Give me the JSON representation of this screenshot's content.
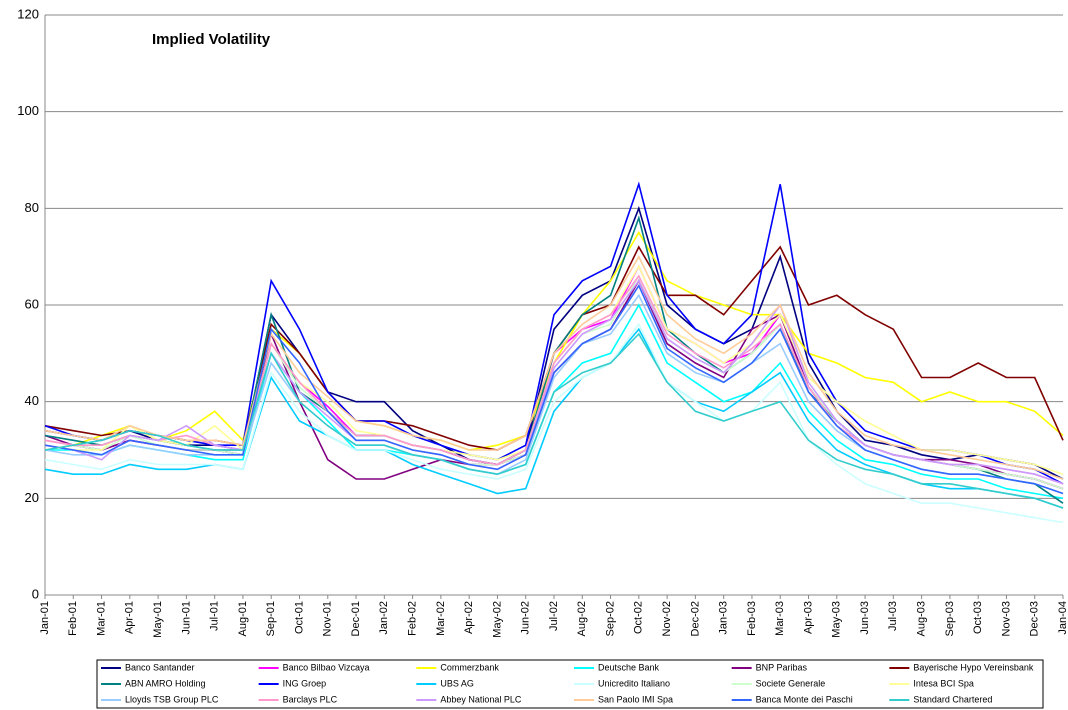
{
  "chart_data": {
    "type": "line",
    "title": "Implied Volatility",
    "categories": [
      "Jan-01",
      "Feb-01",
      "Mar-01",
      "Apr-01",
      "May-01",
      "Jun-01",
      "Jul-01",
      "Aug-01",
      "Sep-01",
      "Oct-01",
      "Nov-01",
      "Dec-01",
      "Jan-02",
      "Feb-02",
      "Mar-02",
      "Apr-02",
      "May-02",
      "Jun-02",
      "Jul-02",
      "Aug-02",
      "Sep-02",
      "Oct-02",
      "Nov-02",
      "Dec-02",
      "Jan-03",
      "Feb-03",
      "Mar-03",
      "Apr-03",
      "May-03",
      "Jun-03",
      "Jul-03",
      "Aug-03",
      "Sep-03",
      "Oct-03",
      "Nov-03",
      "Dec-03",
      "Jan-04"
    ],
    "ylim": [
      0,
      120
    ],
    "yticks": [
      0,
      20,
      40,
      60,
      80,
      100,
      120
    ],
    "grid": true,
    "series": [
      {
        "name": "Banco Santander",
        "color": "#000080",
        "values": [
          34,
          33,
          32,
          34,
          32,
          31,
          31,
          30,
          58,
          50,
          42,
          40,
          40,
          34,
          31,
          28,
          27,
          30,
          55,
          62,
          65,
          80,
          60,
          55,
          52,
          55,
          70,
          48,
          38,
          32,
          31,
          29,
          28,
          29,
          28,
          27,
          24
        ]
      },
      {
        "name": "Banco Bilbao Vizcaya",
        "color": "#ff00ff",
        "values": [
          32,
          31,
          30,
          32,
          31,
          30,
          30,
          29,
          52,
          44,
          39,
          33,
          33,
          31,
          30,
          28,
          27,
          29,
          50,
          55,
          57,
          68,
          55,
          52,
          48,
          50,
          58,
          43,
          36,
          31,
          29,
          28,
          27,
          26,
          25,
          24,
          22
        ]
      },
      {
        "name": "Commerzbank",
        "color": "#ffff00",
        "values": [
          30,
          31,
          33,
          35,
          32,
          34,
          38,
          32,
          55,
          50,
          42,
          36,
          35,
          33,
          32,
          30,
          31,
          33,
          48,
          58,
          65,
          75,
          65,
          62,
          60,
          58,
          58,
          50,
          48,
          45,
          44,
          40,
          42,
          40,
          40,
          38,
          33
        ]
      },
      {
        "name": "Deutsche Bank",
        "color": "#00ffff",
        "values": [
          30,
          30,
          29,
          31,
          30,
          29,
          28,
          28,
          50,
          42,
          36,
          30,
          30,
          29,
          28,
          26,
          25,
          27,
          42,
          48,
          50,
          60,
          48,
          44,
          40,
          42,
          48,
          38,
          32,
          28,
          27,
          25,
          24,
          24,
          22,
          21,
          20
        ]
      },
      {
        "name": "BNP Paribas",
        "color": "#800080",
        "values": [
          33,
          31,
          30,
          32,
          31,
          30,
          30,
          29,
          54,
          40,
          28,
          24,
          24,
          26,
          28,
          27,
          27,
          29,
          46,
          52,
          55,
          65,
          52,
          48,
          45,
          55,
          58,
          43,
          36,
          31,
          29,
          28,
          28,
          27,
          25,
          24,
          22
        ]
      },
      {
        "name": "Bayerische Hypo Vereinsbank",
        "color": "#800000",
        "values": [
          35,
          34,
          33,
          34,
          33,
          32,
          32,
          31,
          56,
          50,
          42,
          36,
          36,
          35,
          33,
          31,
          30,
          33,
          50,
          58,
          60,
          72,
          62,
          62,
          58,
          65,
          72,
          60,
          62,
          58,
          55,
          45,
          45,
          48,
          45,
          45,
          32
        ]
      },
      {
        "name": "ABN AMRO Holding",
        "color": "#008080",
        "values": [
          33,
          32,
          31,
          33,
          32,
          31,
          30,
          30,
          58,
          42,
          38,
          33,
          33,
          31,
          30,
          28,
          27,
          30,
          50,
          58,
          62,
          78,
          55,
          50,
          46,
          50,
          56,
          42,
          36,
          31,
          29,
          28,
          27,
          26,
          24,
          23,
          19
        ]
      },
      {
        "name": "ING Groep",
        "color": "#0000ff",
        "values": [
          35,
          33,
          32,
          34,
          33,
          32,
          31,
          31,
          65,
          55,
          42,
          36,
          36,
          33,
          31,
          29,
          28,
          31,
          58,
          65,
          68,
          85,
          62,
          55,
          52,
          58,
          85,
          50,
          40,
          34,
          32,
          30,
          30,
          29,
          27,
          26,
          23
        ]
      },
      {
        "name": "UBS AG",
        "color": "#00ccff",
        "values": [
          26,
          25,
          25,
          27,
          26,
          26,
          27,
          26,
          45,
          36,
          33,
          30,
          30,
          27,
          25,
          23,
          21,
          22,
          38,
          45,
          48,
          55,
          44,
          40,
          38,
          42,
          46,
          36,
          30,
          27,
          25,
          23,
          22,
          22,
          21,
          20,
          18
        ]
      },
      {
        "name": "Unicredito Italiano",
        "color": "#ccffff",
        "values": [
          28,
          27,
          26,
          28,
          27,
          27,
          27,
          26,
          46,
          38,
          33,
          30,
          30,
          28,
          26,
          25,
          24,
          26,
          40,
          45,
          48,
          56,
          44,
          40,
          36,
          38,
          44,
          32,
          27,
          23,
          21,
          19,
          19,
          18,
          17,
          16,
          15
        ]
      },
      {
        "name": "Societe Generale",
        "color": "#ccffcc",
        "values": [
          32,
          31,
          30,
          33,
          31,
          30,
          30,
          29,
          52,
          43,
          38,
          32,
          32,
          30,
          29,
          27,
          27,
          29,
          47,
          54,
          56,
          66,
          53,
          49,
          46,
          50,
          56,
          43,
          36,
          31,
          29,
          28,
          27,
          26,
          25,
          24,
          22
        ]
      },
      {
        "name": "Intesa BCI Spa",
        "color": "#ffff99",
        "values": [
          31,
          30,
          30,
          35,
          32,
          31,
          35,
          30,
          52,
          44,
          40,
          34,
          33,
          31,
          30,
          29,
          28,
          30,
          48,
          55,
          58,
          68,
          55,
          52,
          48,
          52,
          58,
          45,
          40,
          36,
          33,
          30,
          30,
          29,
          28,
          27,
          25
        ]
      },
      {
        "name": "Lloyds TSB  Group PLC",
        "color": "#99ccff",
        "values": [
          30,
          29,
          29,
          31,
          30,
          29,
          29,
          29,
          48,
          40,
          35,
          31,
          31,
          29,
          28,
          26,
          25,
          28,
          45,
          52,
          54,
          62,
          50,
          46,
          44,
          48,
          52,
          40,
          34,
          30,
          28,
          26,
          25,
          25,
          24,
          23,
          21
        ]
      },
      {
        "name": "Barclays PLC",
        "color": "#ff99cc",
        "values": [
          32,
          31,
          31,
          33,
          32,
          33,
          31,
          30,
          52,
          44,
          38,
          33,
          33,
          31,
          30,
          28,
          27,
          30,
          48,
          55,
          58,
          66,
          54,
          50,
          47,
          51,
          56,
          43,
          35,
          31,
          29,
          28,
          27,
          27,
          26,
          25,
          23
        ]
      },
      {
        "name": "Abbey National PLC",
        "color": "#cc99ff",
        "values": [
          31,
          30,
          28,
          33,
          32,
          35,
          31,
          30,
          50,
          42,
          37,
          32,
          32,
          30,
          29,
          27,
          26,
          29,
          47,
          54,
          57,
          65,
          53,
          49,
          46,
          52,
          60,
          44,
          36,
          31,
          29,
          28,
          27,
          27,
          26,
          25,
          23
        ]
      },
      {
        "name": "San Paolo IMI Spa",
        "color": "#ffcc99",
        "values": [
          34,
          33,
          32,
          35,
          33,
          32,
          32,
          31,
          54,
          46,
          41,
          36,
          35,
          33,
          32,
          30,
          30,
          33,
          50,
          56,
          60,
          70,
          58,
          53,
          50,
          54,
          60,
          46,
          38,
          33,
          31,
          30,
          29,
          28,
          27,
          26,
          24
        ]
      },
      {
        "name": "Banca Monte dei Paschi",
        "color": "#3366ff",
        "values": [
          31,
          30,
          29,
          32,
          31,
          30,
          29,
          29,
          55,
          48,
          38,
          32,
          32,
          30,
          29,
          27,
          26,
          29,
          46,
          52,
          55,
          64,
          51,
          47,
          44,
          48,
          55,
          42,
          35,
          30,
          28,
          26,
          25,
          25,
          24,
          23,
          21
        ]
      },
      {
        "name": "Standard Chartered",
        "color": "#33cccc",
        "values": [
          30,
          31,
          32,
          34,
          33,
          31,
          30,
          30,
          50,
          40,
          35,
          31,
          31,
          29,
          28,
          26,
          25,
          27,
          42,
          46,
          48,
          54,
          44,
          38,
          36,
          38,
          40,
          32,
          28,
          26,
          25,
          23,
          23,
          22,
          21,
          20,
          18
        ]
      }
    ]
  }
}
